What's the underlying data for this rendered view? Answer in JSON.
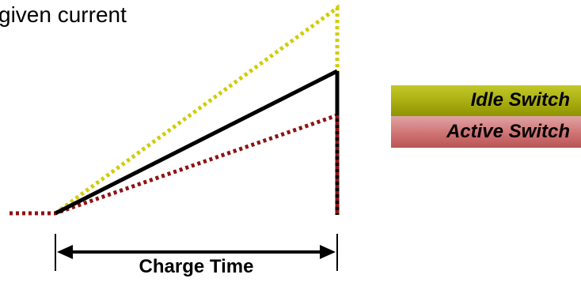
{
  "caption": "given current",
  "legend": {
    "idle": "Idle Switch",
    "active": "Active Switch"
  },
  "axis_label": "Charge Time",
  "colors": {
    "idle": "#d1cc08",
    "active": "#8f1212",
    "nominal": "#000000"
  }
}
